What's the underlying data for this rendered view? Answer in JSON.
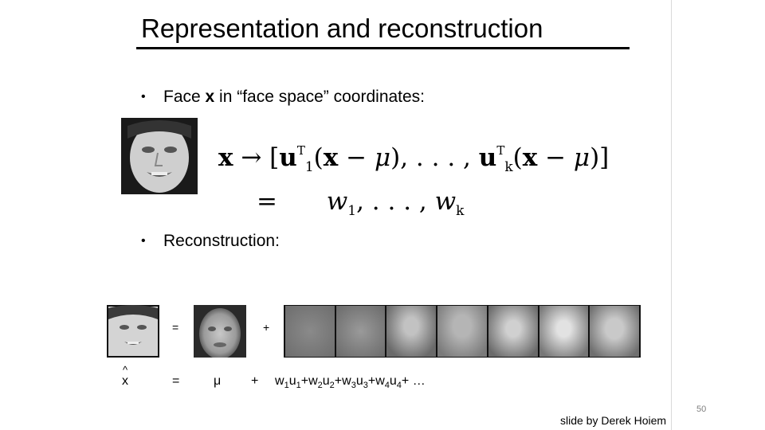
{
  "slide": {
    "title": "Representation and reconstruction",
    "bullet1": {
      "prefix": "Face ",
      "bold": "x",
      "suffix": " in “face space” coordinates:"
    },
    "bullet2": "Reconstruction:",
    "bullet_symbol": "•",
    "equation": {
      "line1": {
        "lhs": "x",
        "arrow": "→",
        "u1": "u",
        "t1": "T",
        "s1": "1",
        "mid": ", . . . , ",
        "uk": "u",
        "tk": "T",
        "sk": "k",
        "x": "x",
        "minus": " − ",
        "mu": "μ"
      },
      "line2": {
        "eq": "=",
        "w": "w",
        "s1": "1",
        "dots": ", . . . , ",
        "wk": "w",
        "sk": "k"
      }
    },
    "reconstruction": {
      "eq_sign": "=",
      "plus_sign": "+",
      "hat": "^",
      "labels": {
        "xhat": "x",
        "eq": "=",
        "mu": "μ",
        "plus": "+",
        "terms": [
          {
            "w": "w",
            "ws": "1",
            "u": "u",
            "us": "1",
            "plus": "+"
          },
          {
            "w": "w",
            "ws": "2",
            "u": "u",
            "us": "2",
            "plus": "+"
          },
          {
            "w": "w",
            "ws": "3",
            "u": "u",
            "us": "3",
            "plus": "+"
          },
          {
            "w": "w",
            "ws": "4",
            "u": "u",
            "us": "4",
            "plus": "+"
          }
        ],
        "ellipsis": " …"
      }
    },
    "credit": "slide by Derek Hoiem",
    "page_number": "50"
  }
}
